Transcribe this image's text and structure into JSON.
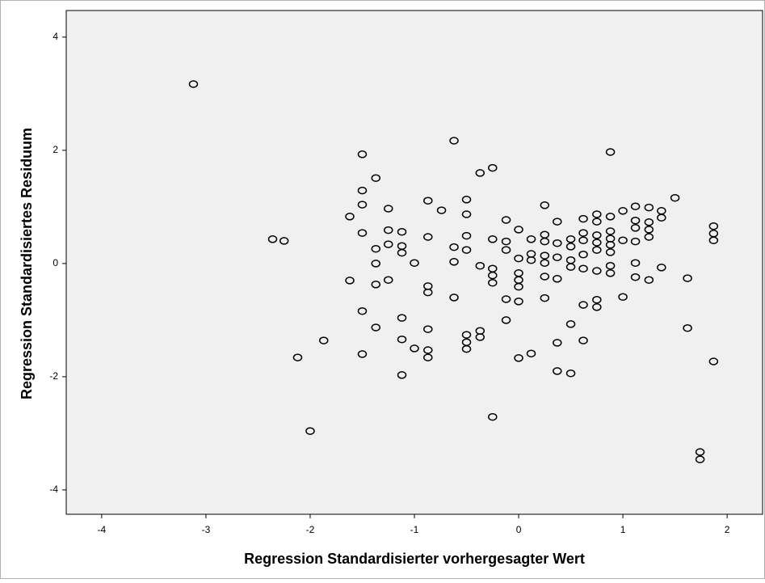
{
  "chart_data": {
    "type": "scatter",
    "x_label": "Regression Standardisierter vorhergesagter Wert",
    "y_label": "Regression Standardisiertes Residuum",
    "xlim": [
      -4.34,
      2.34
    ],
    "ylim": [
      -4.43,
      4.47
    ],
    "xticks": [
      -4,
      -3,
      -2,
      -1,
      0,
      1,
      2
    ],
    "yticks": [
      -4,
      -2,
      0,
      2,
      4
    ],
    "marker_color": "#000000",
    "background": "#f0f0f0",
    "x": [
      -3.12,
      -2.36,
      -2.25,
      -2.12,
      -2.0,
      -1.87,
      -1.62,
      -1.62,
      -1.5,
      -1.5,
      -1.5,
      -1.5,
      -1.5,
      -1.5,
      -1.37,
      -1.37,
      -1.37,
      -1.37,
      -1.37,
      -1.25,
      -1.25,
      -1.25,
      -1.25,
      -1.12,
      -1.12,
      -1.12,
      -1.12,
      -1.12,
      -1.12,
      -1.0,
      -1.0,
      -0.87,
      -0.87,
      -0.87,
      -0.87,
      -0.87,
      -0.87,
      -0.87,
      -0.74,
      -0.62,
      -0.62,
      -0.62,
      -0.62,
      -0.5,
      -0.5,
      -0.5,
      -0.5,
      -0.5,
      -0.5,
      -0.5,
      -0.37,
      -0.37,
      -0.37,
      -0.37,
      -0.25,
      -0.25,
      -0.25,
      -0.25,
      -0.25,
      -0.25,
      -0.12,
      -0.12,
      -0.12,
      -0.12,
      -0.12,
      0,
      0,
      0,
      0,
      0,
      0,
      0,
      0.12,
      0.12,
      0.12,
      0.12,
      0.25,
      0.25,
      0.25,
      0.25,
      0.25,
      0.25,
      0.25,
      0.37,
      0.37,
      0.37,
      0.37,
      0.37,
      0.37,
      0.5,
      0.5,
      0.5,
      0.5,
      0.5,
      0.5,
      0.62,
      0.62,
      0.62,
      0.62,
      0.62,
      0.62,
      0.62,
      0.75,
      0.75,
      0.75,
      0.75,
      0.75,
      0.75,
      0.75,
      0.75,
      0.88,
      0.88,
      0.88,
      0.88,
      0.88,
      0.88,
      0.88,
      0.88,
      1.0,
      1.0,
      1.0,
      1.12,
      1.12,
      1.12,
      1.12,
      1.12,
      1.12,
      1.25,
      1.25,
      1.25,
      1.25,
      1.25,
      1.37,
      1.37,
      1.37,
      1.5,
      1.62,
      1.62,
      1.74,
      1.74,
      1.87,
      1.87,
      1.87,
      1.87
    ],
    "y": [
      3.17,
      0.43,
      0.4,
      -1.66,
      -2.96,
      -1.36,
      0.83,
      -0.3,
      1.93,
      1.29,
      1.04,
      0.54,
      -0.84,
      -1.6,
      1.51,
      0.26,
      0.0,
      -0.37,
      -1.13,
      0.97,
      0.59,
      0.34,
      -0.29,
      0.56,
      0.31,
      0.19,
      -0.96,
      -1.34,
      -1.97,
      0.01,
      -1.5,
      1.11,
      0.47,
      -0.4,
      -0.51,
      -1.16,
      -1.53,
      -1.66,
      0.94,
      2.17,
      0.29,
      0.03,
      -0.6,
      1.13,
      0.87,
      0.49,
      0.24,
      -1.26,
      -1.39,
      -1.51,
      1.6,
      -0.04,
      -1.19,
      -1.3,
      1.69,
      0.43,
      -0.09,
      -0.21,
      -0.34,
      -2.71,
      0.77,
      0.39,
      0.24,
      -0.63,
      -1.0,
      0.6,
      0.09,
      -0.17,
      -0.29,
      -0.41,
      -0.67,
      -1.67,
      0.43,
      0.17,
      0.06,
      -1.59,
      1.03,
      0.51,
      0.39,
      0.14,
      0.01,
      -0.23,
      -0.61,
      0.74,
      0.36,
      0.11,
      -0.27,
      -1.4,
      -1.9,
      0.43,
      0.3,
      0.06,
      -0.06,
      -1.07,
      -1.94,
      0.79,
      0.54,
      0.41,
      0.16,
      -0.09,
      -0.73,
      -1.36,
      0.87,
      0.74,
      0.5,
      0.37,
      0.24,
      -0.13,
      -0.64,
      -0.77,
      1.97,
      0.83,
      0.57,
      0.44,
      0.33,
      0.2,
      -0.04,
      -0.17,
      0.93,
      0.41,
      -0.59,
      1.01,
      0.76,
      0.63,
      0.39,
      0.01,
      -0.24,
      0.99,
      0.73,
      0.6,
      0.47,
      -0.29,
      0.93,
      0.81,
      -0.07,
      1.16,
      -0.26,
      -1.14,
      -3.33,
      -3.46,
      0.66,
      0.53,
      0.41,
      -1.73
    ]
  }
}
